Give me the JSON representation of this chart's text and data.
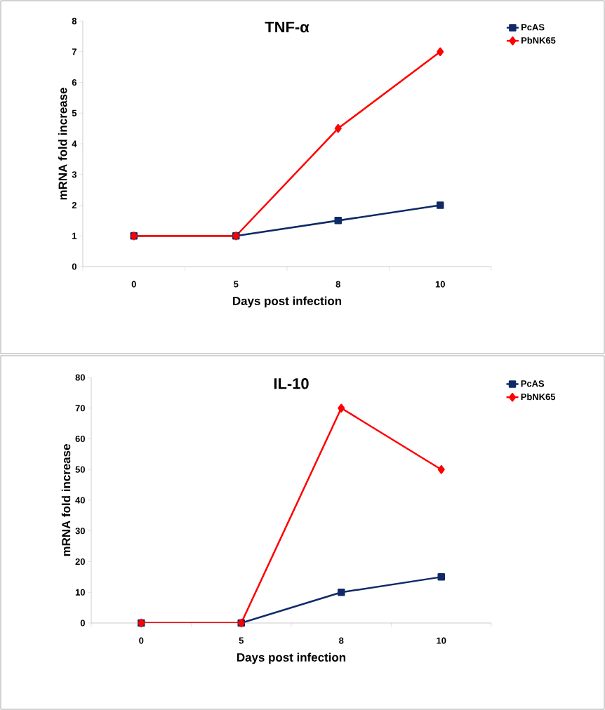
{
  "chart_data": [
    {
      "type": "line",
      "title": "TNF-α",
      "xlabel": "Days post infection",
      "ylabel": "mRNA fold increase",
      "categories": [
        "0",
        "5",
        "8",
        "10"
      ],
      "ylim": [
        0,
        8
      ],
      "yticks": [
        0,
        1,
        2,
        3,
        4,
        5,
        6,
        7,
        8
      ],
      "legend": "top right",
      "grid": false,
      "series": [
        {
          "name": "PcAS",
          "color": "#0f2a66",
          "marker": "square",
          "values": [
            1,
            1,
            1.5,
            2
          ]
        },
        {
          "name": "PbNK65",
          "color": "#ff0000",
          "marker": "diamond",
          "values": [
            1,
            1,
            4.5,
            7
          ]
        }
      ]
    },
    {
      "type": "line",
      "title": "IL-10",
      "xlabel": "Days post infection",
      "ylabel": "mRNA fold increase",
      "categories": [
        "0",
        "5",
        "8",
        "10"
      ],
      "ylim": [
        0,
        80
      ],
      "yticks": [
        0,
        10,
        20,
        30,
        40,
        50,
        60,
        70,
        80
      ],
      "legend": "top right",
      "grid": false,
      "series": [
        {
          "name": "PcAS",
          "color": "#0f2a66",
          "marker": "square",
          "values": [
            0,
            0,
            10,
            15
          ]
        },
        {
          "name": "PbNK65",
          "color": "#ff0000",
          "marker": "diamond",
          "values": [
            0,
            0,
            70,
            50
          ]
        }
      ]
    }
  ]
}
